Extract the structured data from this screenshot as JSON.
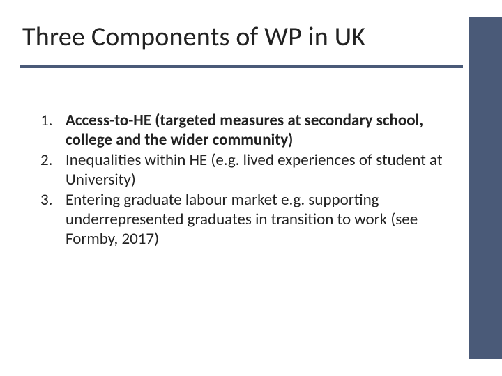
{
  "slide": {
    "title": "Three Components of WP in UK",
    "items": [
      {
        "text": "Access-to-HE (targeted measures at secondary school, college and the wider community)",
        "bold": true
      },
      {
        "text": "Inequalities within HE (e.g. lived experiences of student at University)",
        "bold": false
      },
      {
        "text": "Entering graduate labour market e.g. supporting underrepresented graduates in transition to work (see Formby, 2017)",
        "bold": false
      }
    ],
    "accent_color": "#4a5a78",
    "background_color": "#ffffff",
    "title_fontsize": 38,
    "body_fontsize": 23
  }
}
